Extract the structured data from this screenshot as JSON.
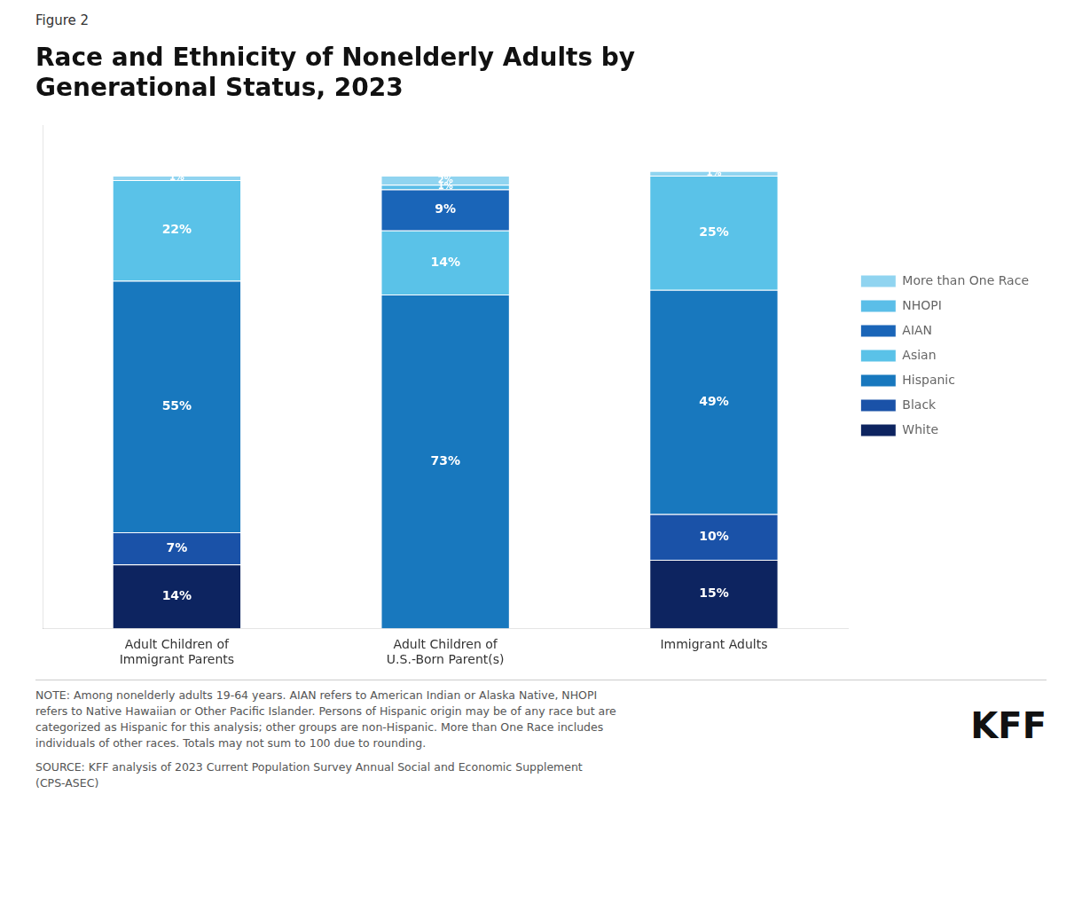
{
  "chart_data": {
    "type": "bar",
    "stacked": true,
    "title": "Race and Ethnicity of Nonelderly Adults by\nGenerational Status, 2023",
    "subtitle": "Figure 2",
    "categories": [
      "Adult Children of\nImmigrant Parents",
      "Adult Children of\nU.S.-Born Parent(s)",
      "Immigrant Adults"
    ],
    "series": [
      {
        "name": "White",
        "color": "#0d2460",
        "values": [
          14,
          0,
          15
        ],
        "value_labels": [
          "14%",
          null,
          "15%"
        ]
      },
      {
        "name": "Black",
        "color": "#1a52a8",
        "values": [
          7,
          0,
          10
        ],
        "value_labels": [
          "7%",
          null,
          "10%"
        ]
      },
      {
        "name": "Hispanic",
        "color": "#1878be",
        "values": [
          55,
          73,
          49
        ],
        "value_labels": [
          "55%",
          "73%",
          "49%"
        ]
      },
      {
        "name": "Asian",
        "color": "#5ac2e8",
        "values": [
          22,
          14,
          25
        ],
        "value_labels": [
          "22%",
          "14%",
          "25%"
        ]
      },
      {
        "name": "AIAN",
        "color": "#1a65b8",
        "values": [
          0,
          9,
          0
        ],
        "value_labels": [
          null,
          "9%",
          null
        ]
      },
      {
        "name": "NHOPI",
        "color": "#5bbee8",
        "values": [
          0,
          1,
          0
        ],
        "value_labels": [
          null,
          "1%",
          null
        ]
      },
      {
        "name": "More than One Race",
        "color": "#90d4f0",
        "values": [
          1,
          2,
          1
        ],
        "value_labels": [
          "1%",
          "2%",
          "1%"
        ]
      }
    ],
    "ylim": [
      0,
      110
    ],
    "yticks": [],
    "tick_labels": "x",
    "grid": false,
    "legend": "right",
    "data_labels": true,
    "annotations": [
      "NOTE: Among nonelderly adults 19-64 years. AIAN refers to American Indian or Alaska Native, NHOPI\nrefers to Native Hawaiian or Other Pacific Islander. Persons of Hispanic origin may be of any race but are\ncategorized as Hispanic for this analysis; other groups are non-Hispanic. More than One Race includes\nindividuals of other races. Totals may not sum to 100 due to rounding.",
      "SOURCE: KFF analysis of 2023 Current Population Survey Annual Social and Economic Supplement\n(CPS-ASEC)",
      "KFF"
    ]
  }
}
